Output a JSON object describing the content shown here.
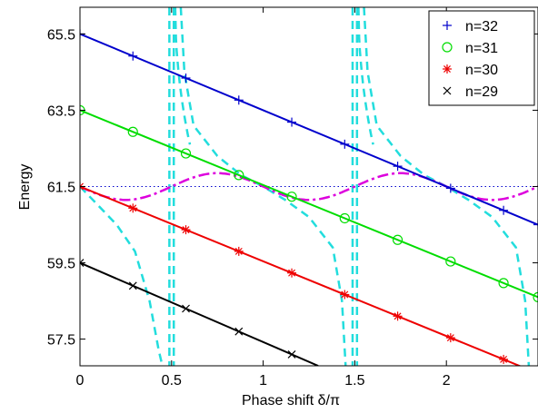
{
  "chart_data": {
    "type": "line",
    "xlabel": "Phase shift δ/π",
    "ylabel": "Energy",
    "xlim": [
      0,
      2.5
    ],
    "ylim": [
      56.8,
      66.2
    ],
    "x_ticks": [
      {
        "value": 0,
        "label": "0"
      },
      {
        "value": 0.5,
        "label": "0.5"
      },
      {
        "value": 1,
        "label": "1"
      },
      {
        "value": 1.5,
        "label": "1.5"
      },
      {
        "value": 2,
        "label": "2"
      }
    ],
    "y_ticks": [
      {
        "value": 57.5,
        "label": "57.5"
      },
      {
        "value": 59.5,
        "label": "59.5"
      },
      {
        "value": 61.5,
        "label": "61.5"
      },
      {
        "value": 63.5,
        "label": "63.5"
      },
      {
        "value": 65.5,
        "label": "65.5"
      }
    ],
    "legend_position": "top-right",
    "series": [
      {
        "name": "n=32",
        "marker": "plus",
        "color": "#0000cc",
        "x": [
          0,
          2.5
        ],
        "y": [
          65.5,
          60.5
        ],
        "marker_x": [
          0,
          0.289,
          0.578,
          0.867,
          1.156,
          1.445,
          1.734,
          2.023,
          2.312,
          2.5
        ]
      },
      {
        "name": "n=31",
        "marker": "circle",
        "color": "#00dd00",
        "x": [
          0,
          2.5
        ],
        "y": [
          63.5,
          58.6
        ],
        "marker_x": [
          0,
          0.289,
          0.578,
          0.867,
          1.156,
          1.445,
          1.734,
          2.023,
          2.312,
          2.5
        ]
      },
      {
        "name": "n=30",
        "marker": "star",
        "color": "#ee0000",
        "x": [
          0,
          2.5
        ],
        "y": [
          61.5,
          56.6
        ],
        "marker_x": [
          0,
          0.289,
          0.578,
          0.867,
          1.156,
          1.445,
          1.734,
          2.023,
          2.312
        ]
      },
      {
        "name": "n=29",
        "marker": "cross",
        "color": "#000000",
        "x": [
          0,
          1.3
        ],
        "y": [
          59.5,
          56.8
        ],
        "marker_x": [
          0,
          0.289,
          0.578,
          0.867,
          1.156
        ]
      }
    ],
    "curves": [
      {
        "style": "dashed",
        "color": "#22dddd",
        "description_free": true,
        "segments": [
          [
            [
              0,
              61.5
            ],
            [
              0.1,
              61.0
            ],
            [
              0.2,
              60.5
            ],
            [
              0.3,
              59.8
            ],
            [
              0.38,
              58.5
            ],
            [
              0.43,
              57.2
            ],
            [
              0.45,
              56.8
            ]
          ],
          [
            [
              0.49,
              66.2
            ],
            [
              0.49,
              66.2
            ]
          ],
          [
            [
              0.51,
              56.8
            ],
            [
              0.51,
              56.8
            ]
          ],
          [
            [
              0.55,
              66.2
            ],
            [
              0.57,
              64.5
            ],
            [
              0.62,
              63.1
            ],
            [
              0.75,
              62.3
            ],
            [
              0.88,
              61.8
            ],
            [
              1.0,
              61.5
            ],
            [
              1.12,
              61.15
            ],
            [
              1.25,
              60.7
            ],
            [
              1.38,
              59.9
            ],
            [
              1.43,
              58.5
            ],
            [
              1.45,
              56.8
            ]
          ],
          [
            [
              1.49,
              66.2
            ],
            [
              1.49,
              66.2
            ]
          ],
          [
            [
              1.51,
              56.8
            ],
            [
              1.51,
              56.8
            ]
          ],
          [
            [
              1.55,
              66.2
            ],
            [
              1.57,
              64.5
            ],
            [
              1.62,
              63.1
            ],
            [
              1.75,
              62.3
            ],
            [
              1.88,
              61.8
            ],
            [
              2.0,
              61.5
            ],
            [
              2.12,
              61.15
            ],
            [
              2.25,
              60.7
            ],
            [
              2.38,
              59.9
            ],
            [
              2.43,
              58.5
            ],
            [
              2.45,
              56.8
            ]
          ]
        ]
      },
      {
        "style": "dashdot",
        "color": "#dd00dd",
        "center": 61.5,
        "amplitude": 0.35,
        "period": 1.0
      },
      {
        "style": "dotted",
        "color": "#0000cc",
        "y": 61.5
      }
    ],
    "vertical_dashed_x": [
      0.5,
      1.5
    ]
  }
}
